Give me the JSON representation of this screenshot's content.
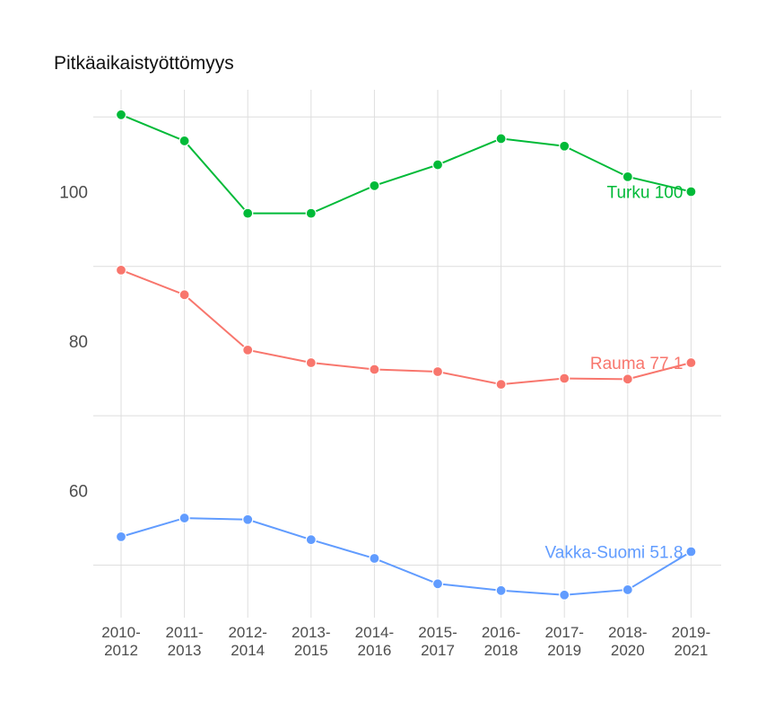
{
  "chart_data": {
    "type": "line",
    "title": "Pitkäaikaistyöttömyys",
    "xlabel": "",
    "ylabel": "",
    "categories": [
      [
        "2010-",
        "2012"
      ],
      [
        "2011-",
        "2013"
      ],
      [
        "2012-",
        "2014"
      ],
      [
        "2013-",
        "2015"
      ],
      [
        "2014-",
        "2016"
      ],
      [
        "2015-",
        "2017"
      ],
      [
        "2016-",
        "2018"
      ],
      [
        "2017-",
        "2019"
      ],
      [
        "2018-",
        "2020"
      ],
      [
        "2019-",
        "2021"
      ]
    ],
    "ylim": [
      45.5,
      111.5
    ],
    "yticks": [
      60,
      80,
      100
    ],
    "ygrid_minor": [
      50,
      70,
      90,
      110
    ],
    "grid": true,
    "legend": "none",
    "series": [
      {
        "name": "Turku",
        "label": "Turku 100",
        "color": "#00ba38",
        "values": [
          110.3,
          106.8,
          97.1,
          97.1,
          100.8,
          103.6,
          107.1,
          106.1,
          102.0,
          100.0
        ]
      },
      {
        "name": "Rauma",
        "label": "Rauma 77.1",
        "color": "#f8766d",
        "values": [
          89.5,
          86.2,
          78.8,
          77.1,
          76.2,
          75.9,
          74.2,
          75.0,
          74.9,
          77.1
        ]
      },
      {
        "name": "Vakka-Suomi",
        "label": "Vakka-Suomi 51.8",
        "color": "#619cff",
        "values": [
          53.8,
          56.3,
          56.1,
          53.4,
          50.9,
          47.5,
          46.6,
          46.0,
          46.7,
          51.8
        ]
      }
    ]
  }
}
